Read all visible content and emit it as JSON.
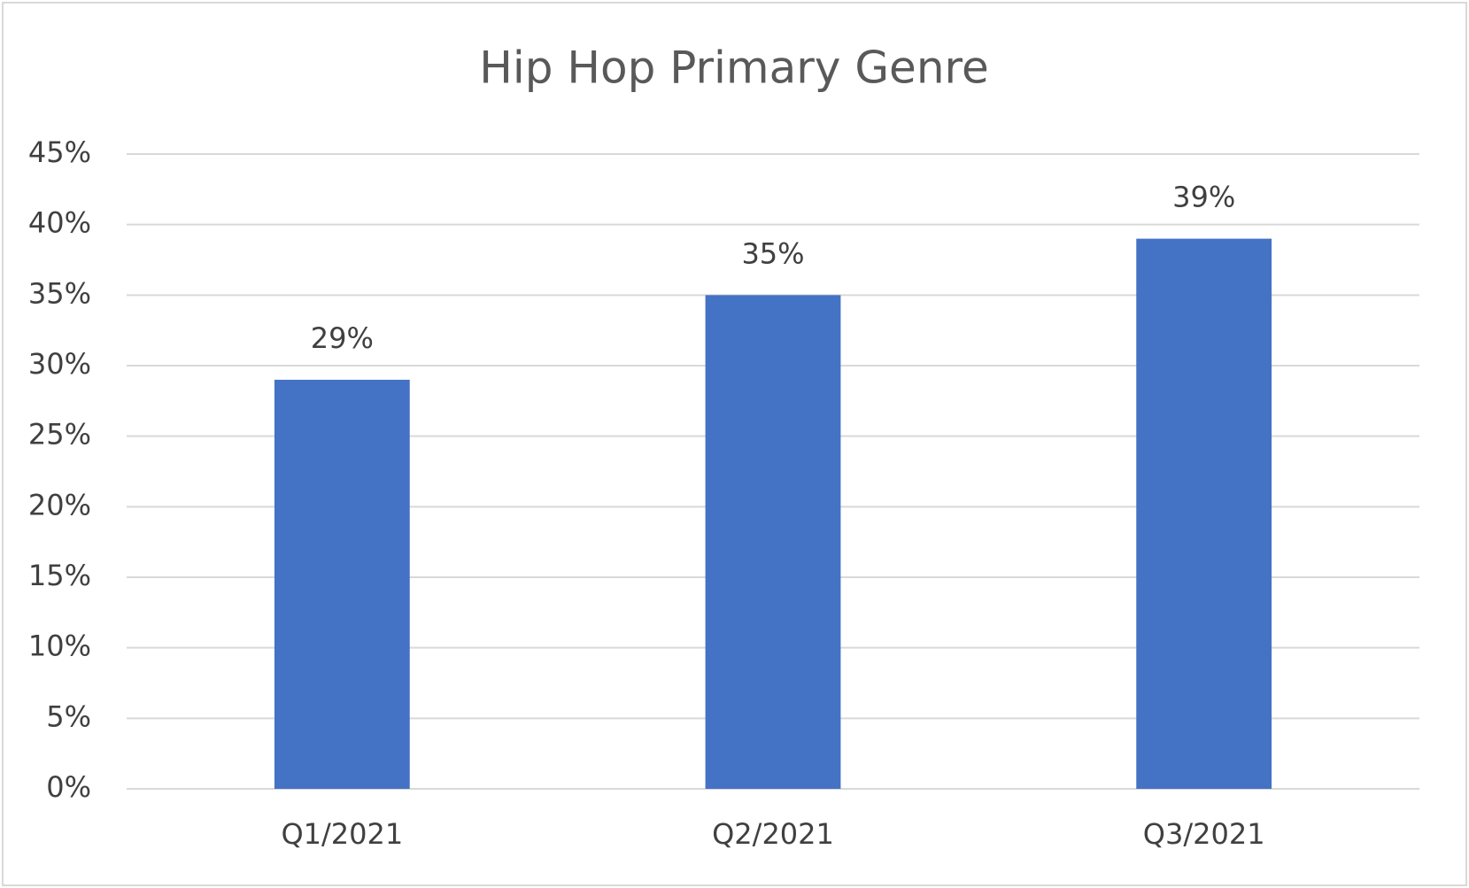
{
  "chart_data": {
    "type": "bar",
    "title": "Hip Hop Primary Genre",
    "categories": [
      "Q1/2021",
      "Q2/2021",
      "Q3/2021"
    ],
    "values": [
      29,
      35,
      39
    ],
    "value_labels": [
      "29%",
      "35%",
      "39%"
    ],
    "color": "#4472c4",
    "ylim": [
      0,
      45
    ],
    "yticks": [
      {
        "value": 0,
        "label": "0%"
      },
      {
        "value": 5,
        "label": "5%"
      },
      {
        "value": 10,
        "label": "10%"
      },
      {
        "value": 15,
        "label": "15%"
      },
      {
        "value": 20,
        "label": "20%"
      },
      {
        "value": 25,
        "label": "25%"
      },
      {
        "value": 30,
        "label": "30%"
      },
      {
        "value": 35,
        "label": "35%"
      },
      {
        "value": 40,
        "label": "40%"
      },
      {
        "value": 45,
        "label": "45%"
      }
    ],
    "grid": true
  }
}
